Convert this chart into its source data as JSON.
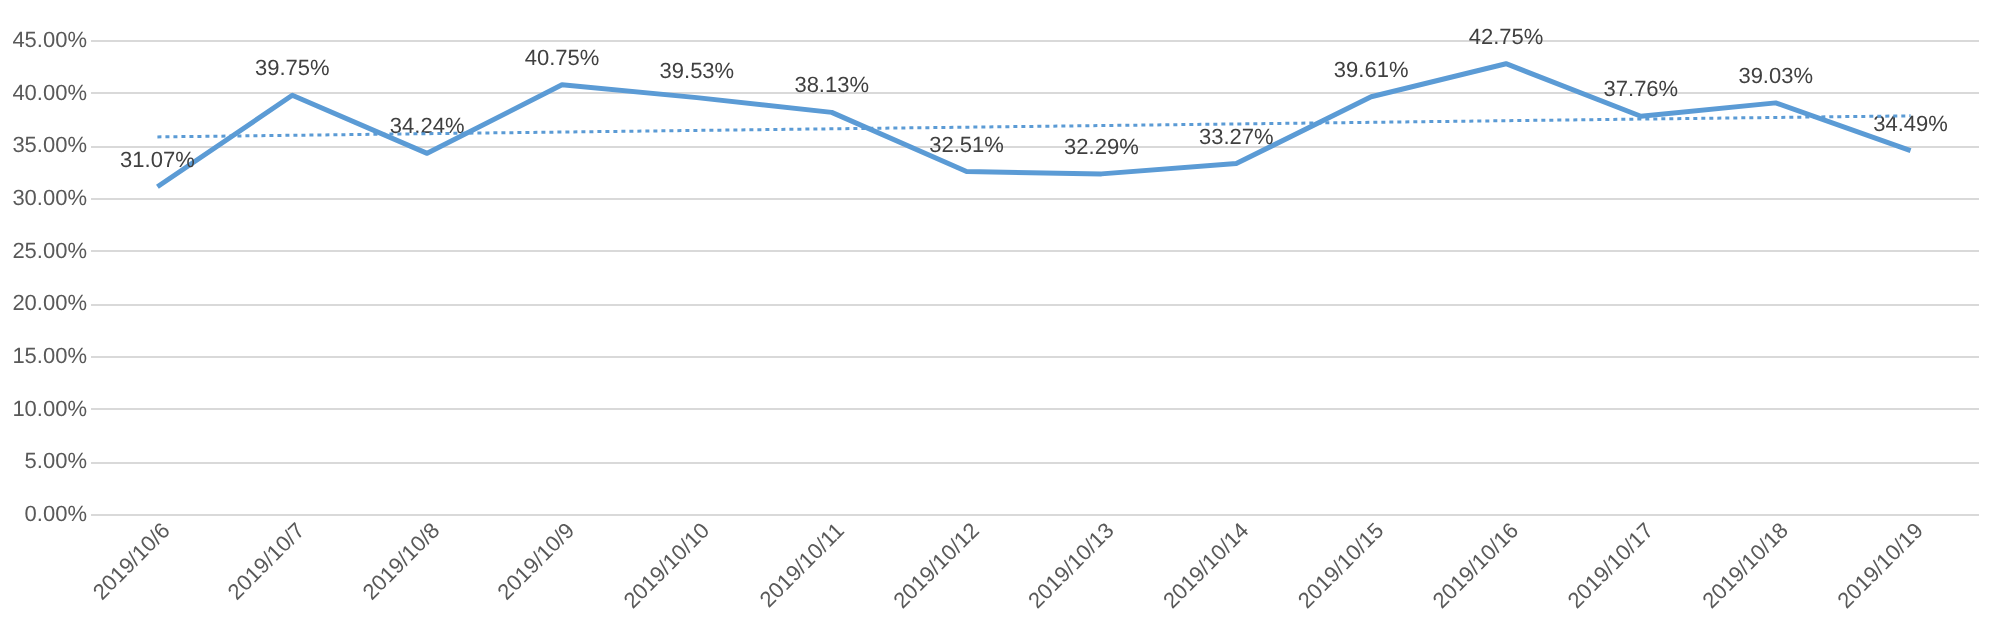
{
  "chart_data": {
    "type": "line",
    "categories": [
      "2019/10/6",
      "2019/10/7",
      "2019/10/8",
      "2019/10/9",
      "2019/10/10",
      "2019/10/11",
      "2019/10/12",
      "2019/10/13",
      "2019/10/14",
      "2019/10/15",
      "2019/10/16",
      "2019/10/17",
      "2019/10/18",
      "2019/10/19"
    ],
    "series": [
      {
        "color": "#5b9bd5",
        "values": [
          31.07,
          39.75,
          34.24,
          40.75,
          39.53,
          38.13,
          32.51,
          32.29,
          33.27,
          39.61,
          42.75,
          37.76,
          39.03,
          34.49
        ],
        "value_labels": [
          "31.07%",
          "39.75%",
          "34.24%",
          "40.75%",
          "39.53%",
          "38.13%",
          "32.51%",
          "32.29%",
          "33.27%",
          "39.61%",
          "42.75%",
          "37.76%",
          "39.03%",
          "34.49%"
        ],
        "line_style": "solid"
      },
      {
        "type": "line",
        "color": "#5b9bd5",
        "x": [
          "2019/10/6",
          "2019/10/19"
        ],
        "values": [
          35.8,
          37.8
        ],
        "line_style": "dotted"
      }
    ],
    "ylim": [
      0,
      45
    ],
    "yticks": [
      {
        "value": 0,
        "label": "0.00%"
      },
      {
        "value": 5,
        "label": "5.00%"
      },
      {
        "value": 10,
        "label": "10.00%"
      },
      {
        "value": 15,
        "label": "15.00%"
      },
      {
        "value": 20,
        "label": "20.00%"
      },
      {
        "value": 25,
        "label": "25.00%"
      },
      {
        "value": 30,
        "label": "30.00%"
      },
      {
        "value": 35,
        "label": "35.00%"
      },
      {
        "value": 40,
        "label": "40.00%"
      },
      {
        "value": 45,
        "label": "45.00%"
      }
    ],
    "grid": "y",
    "marker": "none"
  }
}
